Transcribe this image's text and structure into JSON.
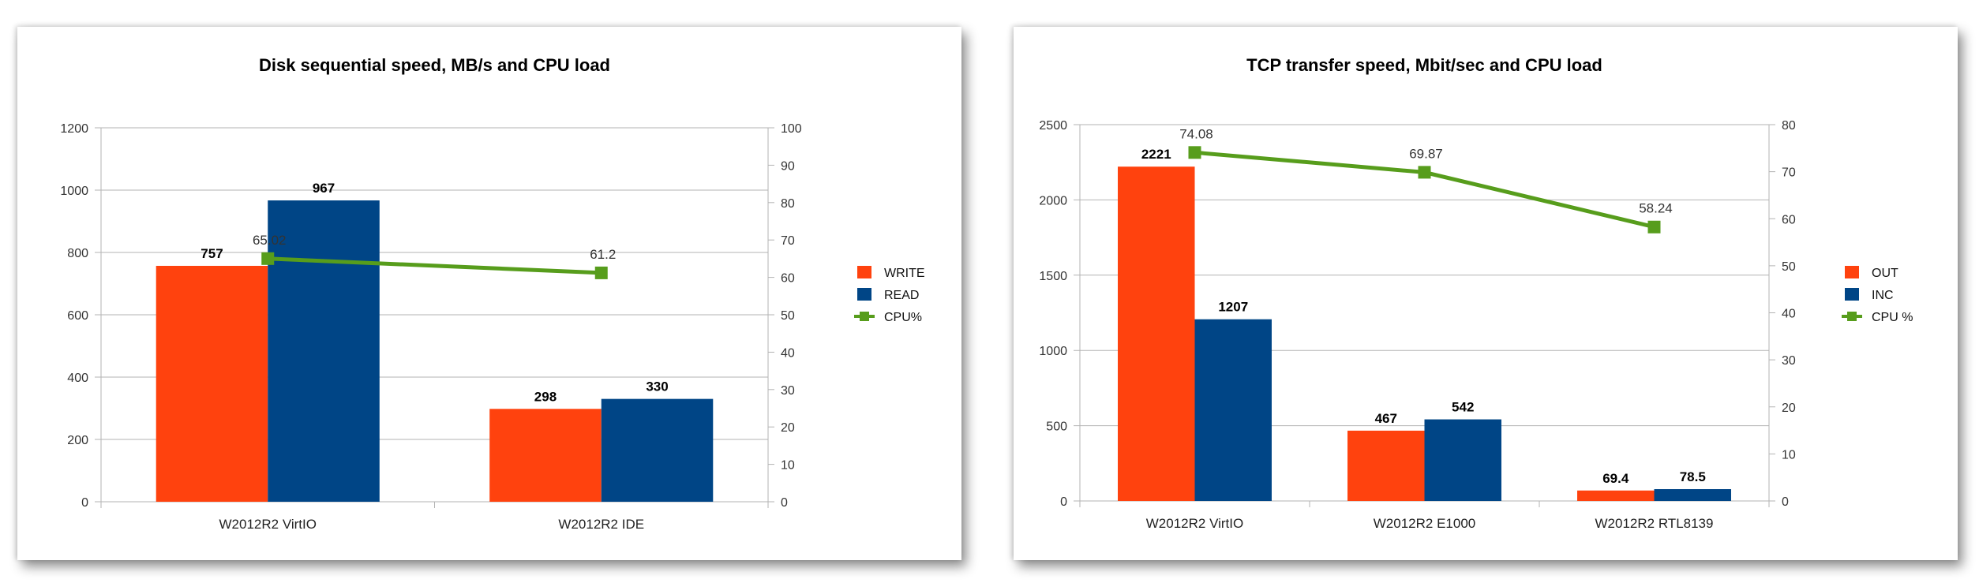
{
  "chart_data": [
    {
      "type": "bar",
      "title": "Disk sequential speed, MB/s and CPU load",
      "categories": [
        "W2012R2 VirtIO",
        "W2012R2 IDE"
      ],
      "series": [
        {
          "name": "WRITE",
          "kind": "bar",
          "values": [
            757,
            298
          ],
          "labels": [
            "757",
            "298"
          ]
        },
        {
          "name": "READ",
          "kind": "bar",
          "values": [
            967,
            330
          ],
          "labels": [
            "967",
            "330"
          ]
        },
        {
          "name": "CPU%",
          "kind": "line",
          "axis": "secondary",
          "values": [
            65.02,
            61.2
          ],
          "labels": [
            "65.02",
            "61.2"
          ]
        }
      ],
      "ylim": [
        0,
        1200
      ],
      "yticks": [
        "0",
        "200",
        "400",
        "600",
        "800",
        "1000",
        "1200"
      ],
      "y2lim": [
        0,
        100
      ],
      "y2ticks": [
        "0",
        "10",
        "20",
        "30",
        "40",
        "50",
        "60",
        "70",
        "80",
        "90",
        "100"
      ],
      "grid": true,
      "legend": "right",
      "colors": {
        "bar1": "#ff420e",
        "bar2": "#004586",
        "line": "#579d1c"
      }
    },
    {
      "type": "bar",
      "title": "TCP transfer speed, Mbit/sec and CPU load",
      "categories": [
        "W2012R2 VirtIO",
        "W2012R2 E1000",
        "W2012R2 RTL8139"
      ],
      "series": [
        {
          "name": "OUT",
          "kind": "bar",
          "values": [
            2221,
            467,
            69.4
          ],
          "labels": [
            "2221",
            "467",
            "69.4"
          ]
        },
        {
          "name": "INC",
          "kind": "bar",
          "values": [
            1207,
            542,
            78.5
          ],
          "labels": [
            "1207",
            "542",
            "78.5"
          ]
        },
        {
          "name": "CPU %",
          "kind": "line",
          "axis": "secondary",
          "values": [
            74.08,
            69.87,
            58.24
          ],
          "labels": [
            "74.08",
            "69.87",
            "58.24"
          ]
        }
      ],
      "ylim": [
        0,
        2500
      ],
      "yticks": [
        "0",
        "500",
        "1000",
        "1500",
        "2000",
        "2500"
      ],
      "y2lim": [
        0,
        80
      ],
      "y2ticks": [
        "0",
        "10",
        "20",
        "30",
        "40",
        "50",
        "60",
        "70",
        "80"
      ],
      "grid": true,
      "legend": "right",
      "colors": {
        "bar1": "#ff420e",
        "bar2": "#004586",
        "line": "#579d1c"
      }
    }
  ]
}
